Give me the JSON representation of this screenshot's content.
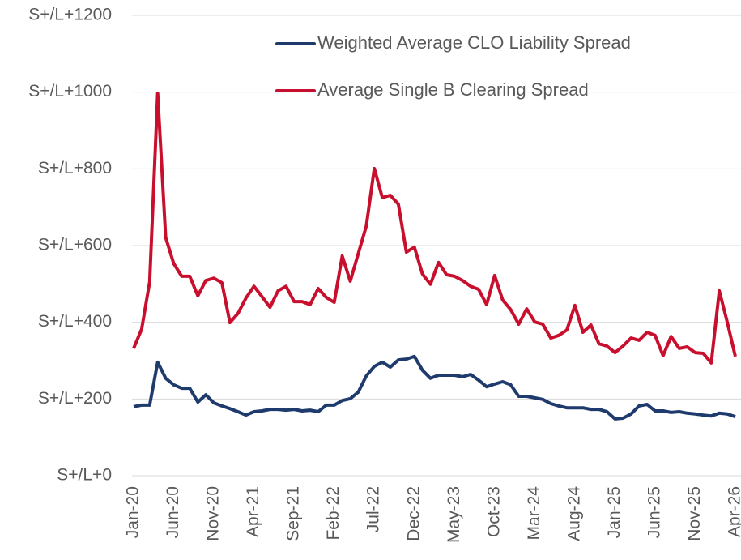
{
  "chart_data": {
    "type": "line",
    "categories": [
      "Jan-20",
      null,
      null,
      null,
      null,
      "Jun-20",
      null,
      null,
      null,
      null,
      "Nov-20",
      null,
      null,
      null,
      null,
      "Apr-21",
      null,
      null,
      null,
      null,
      "Sep-21",
      null,
      null,
      null,
      null,
      "Feb-22",
      null,
      null,
      null,
      null,
      "Jul-22",
      null,
      null,
      null,
      null,
      "Dec-22",
      null,
      null,
      null,
      null,
      "May-23",
      null,
      null,
      null,
      null,
      "Oct-23",
      null,
      null,
      null,
      null,
      "Mar-24",
      null,
      null,
      null,
      null,
      "Aug-24",
      null,
      null,
      null,
      null,
      "Jan-25",
      null,
      null,
      null,
      null,
      "Jun-25",
      null,
      null,
      null,
      null,
      "Nov-25",
      null,
      null,
      null,
      null,
      "Apr-26"
    ],
    "series": [
      {
        "name": "Weighted Average CLO Liability Spread",
        "color": "#1f3b6e",
        "values": [
          180,
          184,
          184,
          296,
          254,
          237,
          228,
          228,
          192,
          211,
          190,
          182,
          175,
          167,
          158,
          167,
          169,
          173,
          173,
          171,
          173,
          169,
          171,
          167,
          184,
          184,
          196,
          201,
          218,
          260,
          285,
          296,
          283,
          302,
          304,
          311,
          275,
          254,
          262,
          262,
          262,
          258,
          264,
          249,
          232,
          239,
          245,
          237,
          207,
          207,
          203,
          199,
          188,
          182,
          177,
          177,
          177,
          173,
          173,
          167,
          148,
          150,
          161,
          182,
          186,
          169,
          169,
          165,
          167,
          163,
          161,
          158,
          156,
          163,
          161,
          154
        ]
      },
      {
        "name": "Average Single B Clearing Spread",
        "color": "#c8102e",
        "values": [
          332,
          382,
          505,
          997,
          621,
          553,
          520,
          520,
          469,
          509,
          515,
          503,
          399,
          423,
          463,
          494,
          467,
          439,
          482,
          494,
          454,
          454,
          446,
          488,
          465,
          452,
          573,
          507,
          579,
          651,
          801,
          725,
          731,
          708,
          583,
          596,
          526,
          499,
          556,
          524,
          520,
          509,
          494,
          486,
          446,
          522,
          458,
          433,
          395,
          435,
          401,
          395,
          359,
          366,
          380,
          444,
          374,
          393,
          344,
          338,
          321,
          338,
          359,
          353,
          374,
          366,
          313,
          363,
          332,
          336,
          321,
          319,
          294,
          482,
          400,
          311
        ]
      }
    ],
    "ylim": [
      0,
      1200
    ],
    "yticks": [
      {
        "value": 0,
        "label": "S+/L+0"
      },
      {
        "value": 200,
        "label": "S+/L+200"
      },
      {
        "value": 400,
        "label": "S+/L+400"
      },
      {
        "value": 600,
        "label": "S+/L+600"
      },
      {
        "value": 800,
        "label": "S+/L+800"
      },
      {
        "value": 1000,
        "label": "S+/L+1000"
      },
      {
        "value": 1200,
        "label": "S+/L+1200"
      }
    ],
    "grid": true
  }
}
